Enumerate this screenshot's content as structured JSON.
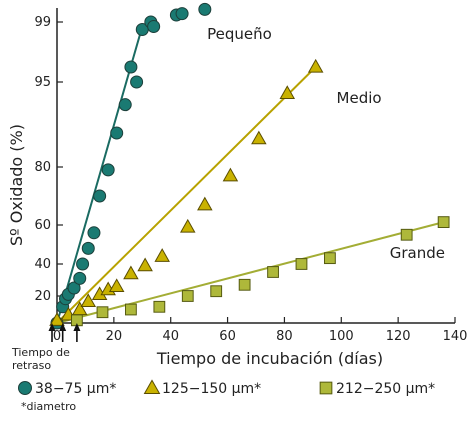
{
  "chart_data": {
    "type": "scatter",
    "title": "",
    "xlabel": "Tiempo de incubación (días)",
    "ylabel": "Sº Oxidado (%)",
    "xlim": [
      0,
      140
    ],
    "x_ticks": [
      0,
      20,
      40,
      60,
      80,
      100,
      120,
      140
    ],
    "y_ticks": [
      20,
      40,
      60,
      80,
      95,
      99
    ],
    "y_scale": "probability",
    "grid": false,
    "lag_label": "Tiempo de retraso",
    "lag_markers_x": [
      0,
      2,
      7
    ],
    "series": [
      {
        "name": "Pequeño",
        "marker": "circle",
        "color": "#1a7a72",
        "x": [
          0,
          2,
          3,
          4,
          6,
          8,
          9,
          11,
          13,
          15,
          18,
          21,
          24,
          26,
          28,
          30,
          33,
          34,
          42,
          44,
          52
        ],
        "y": [
          10,
          16,
          19,
          21,
          25,
          31,
          40,
          48,
          56,
          70,
          79,
          86,
          91,
          96,
          95,
          98.5,
          99,
          98.7,
          99.5,
          99.6,
          99.9
        ],
        "fit": {
          "x": [
            0,
            30
          ],
          "y": [
            10,
            98.7
          ]
        }
      },
      {
        "name": "Medio",
        "marker": "triangle",
        "color": "#c9b200",
        "x": [
          0,
          4,
          8,
          11,
          15,
          18,
          21,
          26,
          31,
          37,
          46,
          52,
          61,
          71,
          81,
          91
        ],
        "y": [
          11,
          13,
          15,
          18,
          21,
          24,
          26,
          34,
          39,
          44,
          59,
          67,
          77,
          85,
          93,
          96
        ],
        "fit": {
          "x": [
            0,
            91
          ],
          "y": [
            10,
            96
          ]
        }
      },
      {
        "name": "Grande",
        "marker": "square",
        "color": "#aeb83a",
        "x": [
          7,
          16,
          26,
          36,
          46,
          56,
          66,
          76,
          86,
          96,
          123,
          136
        ],
        "y": [
          11,
          14,
          15,
          16,
          20,
          23,
          27,
          35,
          40,
          43,
          55,
          61
        ],
        "fit": {
          "x": [
            0,
            136
          ],
          "y": [
            10,
            61
          ]
        }
      }
    ],
    "legend": [
      {
        "label": "38−75 µm*",
        "marker": "circle",
        "color": "#1a7a72"
      },
      {
        "label": "125−150 µm*",
        "marker": "triangle",
        "color": "#c9b200"
      },
      {
        "label": "212−250 µm*",
        "marker": "square",
        "color": "#aeb83a"
      }
    ],
    "footnote": "*diametro"
  }
}
